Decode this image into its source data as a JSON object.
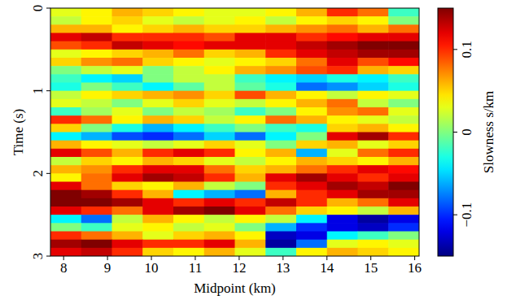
{
  "chart_data": {
    "type": "heatmap",
    "x_label": "Midpoint (km)",
    "y_label": "Time (s)",
    "xlim": [
      7.7,
      16.1
    ],
    "xticks": [
      8,
      9,
      10,
      11,
      12,
      13,
      14,
      15,
      16
    ],
    "ylim": [
      0,
      3
    ],
    "yticks": [
      0,
      1,
      2,
      3
    ],
    "x": [
      8.05,
      8.75,
      9.45,
      10.15,
      10.85,
      11.55,
      12.25,
      12.95,
      13.65,
      14.35,
      15.05,
      15.75
    ],
    "y": [
      0.05,
      0.15,
      0.25,
      0.35,
      0.45,
      0.55,
      0.65,
      0.75,
      0.85,
      0.95,
      1.05,
      1.15,
      1.25,
      1.35,
      1.45,
      1.55,
      1.65,
      1.75,
      1.85,
      1.95,
      2.05,
      2.15,
      2.25,
      2.35,
      2.45,
      2.55,
      2.65,
      2.75,
      2.85,
      2.95
    ],
    "z": [
      [
        0.03,
        0.04,
        0.06,
        0.05,
        0.04,
        0.03,
        0.03,
        0.04,
        0.06,
        0.1,
        0.08,
        -0.02
      ],
      [
        0.02,
        0.04,
        0.05,
        0.03,
        0.02,
        0.03,
        0.04,
        0.02,
        0.04,
        0.05,
        0.04,
        0.0
      ],
      [
        0.06,
        0.06,
        0.04,
        0.05,
        0.06,
        0.05,
        0.05,
        0.06,
        0.07,
        0.08,
        0.06,
        0.08
      ],
      [
        0.12,
        0.13,
        0.1,
        0.1,
        0.1,
        0.09,
        0.12,
        0.12,
        0.1,
        0.11,
        0.12,
        0.12
      ],
      [
        0.09,
        0.1,
        0.13,
        0.12,
        0.11,
        0.12,
        0.12,
        0.12,
        0.13,
        0.14,
        0.15,
        0.15
      ],
      [
        0.03,
        0.04,
        0.05,
        0.06,
        0.08,
        0.05,
        0.06,
        0.1,
        0.12,
        0.13,
        0.14,
        0.14
      ],
      [
        0.05,
        0.07,
        0.08,
        0.05,
        0.04,
        0.03,
        0.04,
        0.05,
        0.08,
        0.12,
        0.09,
        0.11
      ],
      [
        0.0,
        0.02,
        0.03,
        0.0,
        0.02,
        0.04,
        0.06,
        0.07,
        0.09,
        0.1,
        0.06,
        0.05
      ],
      [
        -0.02,
        -0.04,
        -0.05,
        0.0,
        0.02,
        0.02,
        -0.02,
        -0.04,
        -0.05,
        -0.03,
        -0.04,
        -0.02
      ],
      [
        -0.03,
        0.0,
        -0.02,
        -0.04,
        -0.01,
        0.02,
        -0.01,
        -0.03,
        -0.08,
        -0.07,
        -0.05,
        -0.03
      ],
      [
        0.02,
        0.04,
        0.05,
        0.06,
        0.07,
        0.05,
        0.09,
        0.06,
        0.04,
        0.02,
        0.04,
        0.03
      ],
      [
        0.03,
        0.02,
        0.0,
        0.03,
        0.05,
        0.03,
        0.02,
        0.04,
        0.06,
        0.08,
        0.02,
        0.0
      ],
      [
        -0.02,
        0.01,
        0.03,
        0.0,
        0.02,
        0.01,
        -0.02,
        0.0,
        0.04,
        0.07,
        0.08,
        0.03
      ],
      [
        0.1,
        0.08,
        0.04,
        0.06,
        0.05,
        0.02,
        0.04,
        0.08,
        0.06,
        0.04,
        0.03,
        0.02
      ],
      [
        0.05,
        0.0,
        -0.03,
        -0.06,
        -0.04,
        -0.02,
        0.0,
        -0.02,
        -0.03,
        0.05,
        0.06,
        0.04
      ],
      [
        -0.04,
        -0.06,
        -0.09,
        -0.1,
        -0.08,
        -0.05,
        -0.08,
        -0.04,
        0.0,
        0.12,
        0.14,
        0.1
      ],
      [
        0.06,
        0.04,
        0.03,
        0.02,
        0.03,
        0.05,
        0.03,
        0.0,
        0.05,
        0.06,
        0.03,
        0.05
      ],
      [
        0.12,
        0.09,
        0.06,
        0.1,
        0.12,
        0.1,
        0.04,
        0.06,
        -0.06,
        0.03,
        0.08,
        0.1
      ],
      [
        0.02,
        0.05,
        0.04,
        0.06,
        0.05,
        0.03,
        0.02,
        0.04,
        0.06,
        0.05,
        0.04,
        0.06
      ],
      [
        0.06,
        0.07,
        0.1,
        0.12,
        0.12,
        0.08,
        0.05,
        0.06,
        0.08,
        0.1,
        0.12,
        0.11
      ],
      [
        0.04,
        0.08,
        0.12,
        0.14,
        0.13,
        0.1,
        0.06,
        0.12,
        0.14,
        0.12,
        0.1,
        0.12
      ],
      [
        0.12,
        0.08,
        0.05,
        0.04,
        0.06,
        0.02,
        0.0,
        0.1,
        0.12,
        0.14,
        0.13,
        0.15
      ],
      [
        0.15,
        0.14,
        0.1,
        0.06,
        -0.04,
        -0.06,
        -0.08,
        0.06,
        0.1,
        0.12,
        0.14,
        0.14
      ],
      [
        0.15,
        0.15,
        0.14,
        0.12,
        0.1,
        0.12,
        0.1,
        0.13,
        0.1,
        0.06,
        0.08,
        0.12
      ],
      [
        0.12,
        0.1,
        0.08,
        0.12,
        0.14,
        0.15,
        0.12,
        0.08,
        0.05,
        0.04,
        0.02,
        0.06
      ],
      [
        -0.04,
        -0.08,
        0.02,
        0.06,
        0.04,
        0.02,
        0.04,
        0.02,
        -0.04,
        -0.12,
        -0.14,
        -0.12
      ],
      [
        0.0,
        -0.02,
        0.03,
        0.04,
        0.02,
        0.03,
        0.0,
        -0.06,
        -0.1,
        -0.12,
        -0.13,
        -0.1
      ],
      [
        0.1,
        0.08,
        0.06,
        0.03,
        0.05,
        0.06,
        0.04,
        -0.13,
        -0.12,
        -0.04,
        -0.02,
        0.0
      ],
      [
        0.14,
        0.15,
        0.12,
        0.1,
        0.1,
        0.12,
        0.06,
        -0.14,
        -0.08,
        0.03,
        0.04,
        0.03
      ],
      [
        0.12,
        0.13,
        0.1,
        0.05,
        0.04,
        0.06,
        0.03,
        -0.02,
        0.04,
        0.06,
        0.05,
        0.04
      ]
    ],
    "colorbar_label": "Slowness s/km",
    "colorbar_range": [
      -0.15,
      0.15
    ],
    "colorbar_ticks": [
      {
        "value": -0.1,
        "label": "−0.1"
      },
      0,
      0.1
    ]
  }
}
